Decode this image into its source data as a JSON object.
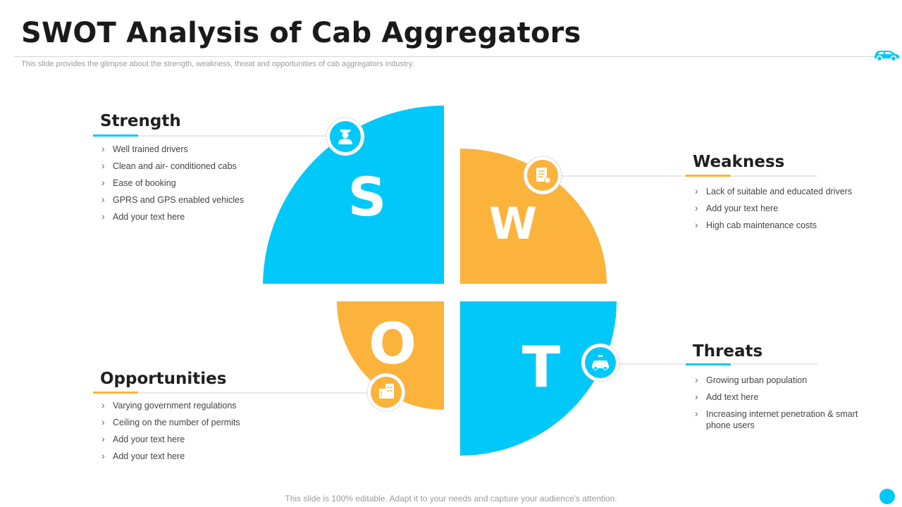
{
  "header": {
    "title": "SWOT Analysis of Cab Aggregators",
    "subtitle": "This slide provides the glimpse about the strength, weakness, threat and opportunities of cab aggregators industry."
  },
  "colors": {
    "blue": "#00c8f8",
    "orange": "#fbb33b"
  },
  "quadrants": {
    "s": {
      "letter": "S",
      "icon": "driver-icon"
    },
    "w": {
      "letter": "W",
      "icon": "document-icon"
    },
    "o": {
      "letter": "O",
      "icon": "building-icon"
    },
    "t": {
      "letter": "T",
      "icon": "taxi-icon"
    }
  },
  "strength": {
    "title": "Strength",
    "items": [
      "Well trained drivers",
      "Clean and air- conditioned cabs",
      "Ease of booking",
      "GPRS and GPS enabled vehicles",
      "Add your text here"
    ]
  },
  "weakness": {
    "title": "Weakness",
    "items": [
      "Lack of suitable and educated drivers",
      "Add your text here",
      "High cab maintenance costs"
    ]
  },
  "opportunities": {
    "title": "Opportunities",
    "items": [
      "Varying government  regulations",
      "Ceiling on the number of permits",
      "Add your text here",
      "Add your text here"
    ]
  },
  "threats": {
    "title": "Threats",
    "items": [
      "Growing  urban  population",
      "Add text here",
      "Increasing  internet  penetration & smart phone users"
    ]
  },
  "footer": "This slide is 100% editable. Adapt it to your needs and capture your audience's attention."
}
